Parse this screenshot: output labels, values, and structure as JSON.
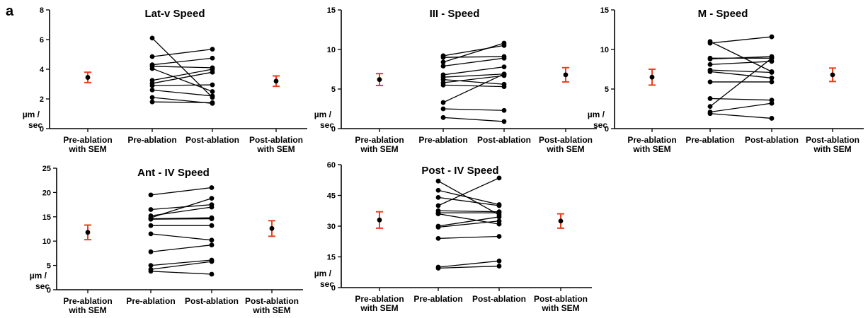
{
  "panel_label": "a",
  "y_label_line1": "µm /",
  "y_label_line2": "sec",
  "categories": [
    [
      "Pre-ablation",
      "with SEM"
    ],
    [
      "Pre-ablation"
    ],
    [
      "Post-ablation"
    ],
    [
      "Post-ablation",
      "with SEM"
    ]
  ],
  "colors": {
    "points": "#000000",
    "error_bars": "#e8401c"
  },
  "chart_data": [
    {
      "type": "scatter",
      "title": "Lat-v Speed",
      "ylim": [
        0,
        8
      ],
      "yticks": [
        0,
        2,
        4,
        6,
        8
      ],
      "paired": [
        [
          6.1,
          2.1
        ],
        [
          4.85,
          5.35
        ],
        [
          4.3,
          4.75
        ],
        [
          4.2,
          4.1
        ],
        [
          4.05,
          2.5
        ],
        [
          3.25,
          4.0
        ],
        [
          3.05,
          3.8
        ],
        [
          2.9,
          2.95
        ],
        [
          2.6,
          2.2
        ],
        [
          2.1,
          1.7
        ],
        [
          1.8,
          1.75
        ]
      ],
      "pre_mean_sem": {
        "mean": 3.45,
        "sem": 0.35
      },
      "post_mean_sem": {
        "mean": 3.2,
        "sem": 0.35
      }
    },
    {
      "type": "scatter",
      "title": "III -  Speed",
      "ylim": [
        0,
        15
      ],
      "yticks": [
        0,
        5,
        10,
        15
      ],
      "paired": [
        [
          9.2,
          10.5
        ],
        [
          9.0,
          9.1
        ],
        [
          8.4,
          10.8
        ],
        [
          7.9,
          8.9
        ],
        [
          6.8,
          7.8
        ],
        [
          6.5,
          6.9
        ],
        [
          6.2,
          5.6
        ],
        [
          5.8,
          6.7
        ],
        [
          5.5,
          5.3
        ],
        [
          3.3,
          6.9
        ],
        [
          2.5,
          2.3
        ],
        [
          1.4,
          0.9
        ]
      ],
      "pre_mean_sem": {
        "mean": 6.2,
        "sem": 0.75
      },
      "post_mean_sem": {
        "mean": 6.8,
        "sem": 0.9
      }
    },
    {
      "type": "scatter",
      "title": "M - Speed",
      "ylim": [
        0,
        15
      ],
      "yticks": [
        0,
        5,
        10,
        15
      ],
      "paired": [
        [
          11.0,
          7.2
        ],
        [
          10.8,
          11.6
        ],
        [
          8.9,
          8.9
        ],
        [
          8.8,
          9.1
        ],
        [
          8.1,
          8.5
        ],
        [
          7.4,
          7.1
        ],
        [
          7.2,
          6.4
        ],
        [
          5.9,
          5.9
        ],
        [
          3.8,
          3.6
        ],
        [
          2.8,
          8.9
        ],
        [
          2.1,
          3.2
        ],
        [
          1.9,
          1.3
        ]
      ],
      "pre_mean_sem": {
        "mean": 6.5,
        "sem": 1.0
      },
      "post_mean_sem": {
        "mean": 6.8,
        "sem": 0.85
      }
    },
    {
      "type": "scatter",
      "title": "Ant - IV Speed",
      "ylim": [
        0,
        25
      ],
      "yticks": [
        0,
        5,
        10,
        15,
        20,
        25
      ],
      "paired": [
        [
          19.5,
          21.0
        ],
        [
          16.5,
          17.5
        ],
        [
          15.2,
          17.0
        ],
        [
          14.8,
          18.8
        ],
        [
          14.6,
          14.8
        ],
        [
          14.5,
          14.6
        ],
        [
          13.2,
          13.2
        ],
        [
          11.5,
          10.2
        ],
        [
          7.8,
          9.2
        ],
        [
          5.0,
          6.1
        ],
        [
          4.2,
          5.8
        ],
        [
          3.8,
          3.2
        ]
      ],
      "pre_mean_sem": {
        "mean": 11.8,
        "sem": 1.5
      },
      "post_mean_sem": {
        "mean": 12.6,
        "sem": 1.6
      }
    },
    {
      "type": "scatter",
      "title": "Post - IV Speed",
      "ylim": [
        0,
        60
      ],
      "yticks": [
        15,
        30,
        45,
        60
      ],
      "paired": [
        [
          52.0,
          35.5
        ],
        [
          47.5,
          40.5
        ],
        [
          44.0,
          40.0
        ],
        [
          40.0,
          53.5
        ],
        [
          37.5,
          37.0
        ],
        [
          36.5,
          36.5
        ],
        [
          36.0,
          31.0
        ],
        [
          30.0,
          34.5
        ],
        [
          29.5,
          32.5
        ],
        [
          24.0,
          25.0
        ],
        [
          10.0,
          13.0
        ],
        [
          9.5,
          10.5
        ]
      ],
      "pre_mean_sem": {
        "mean": 33.0,
        "sem": 4.0
      },
      "post_mean_sem": {
        "mean": 32.5,
        "sem": 3.5
      }
    }
  ]
}
